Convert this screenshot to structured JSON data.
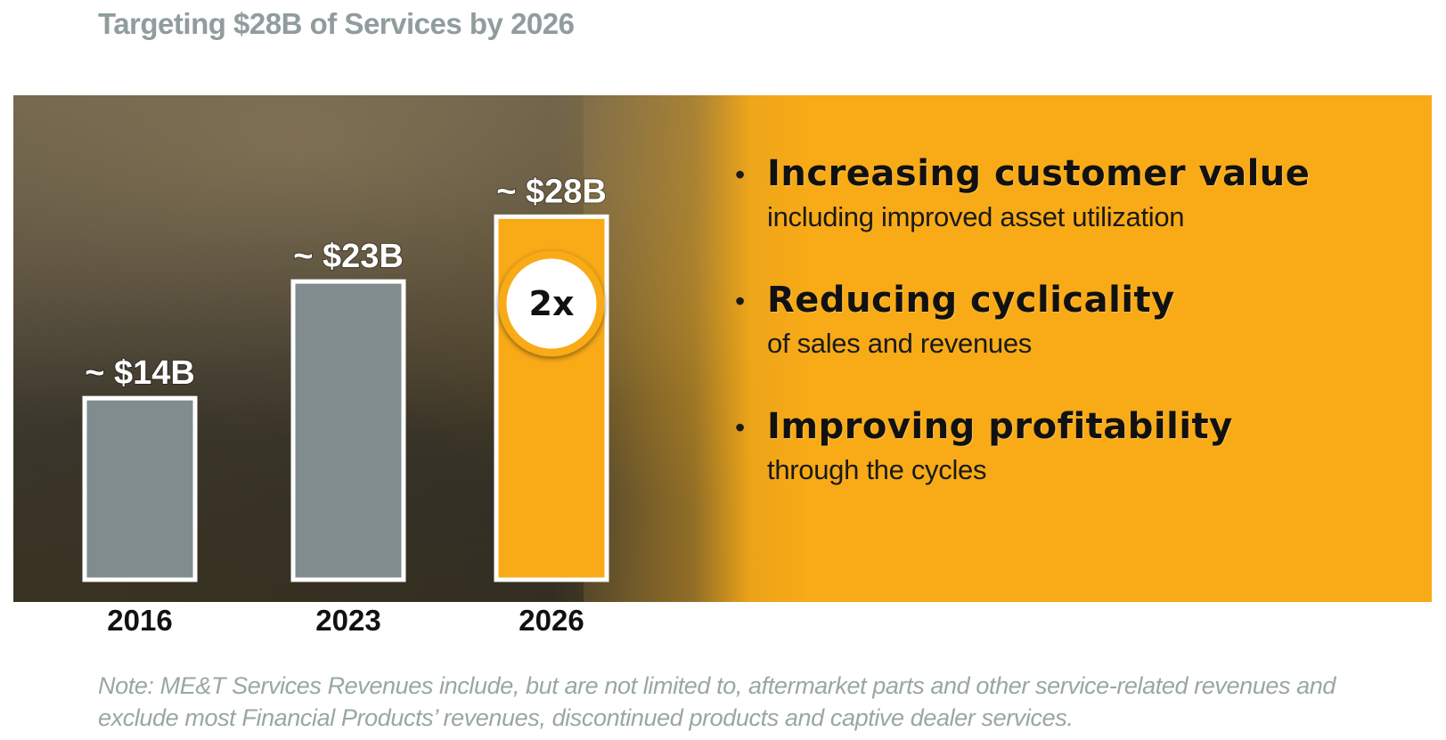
{
  "title": "Targeting $28B of Services by 2026",
  "chart_data": {
    "type": "bar",
    "categories": [
      "2016",
      "2023",
      "2026"
    ],
    "values": [
      14,
      23,
      28
    ],
    "value_labels": [
      "~ $14B",
      "~ $23B",
      "~ $28B"
    ],
    "unit": "$B",
    "title": "Targeting $28B of Services by 2026",
    "xlabel": "",
    "ylabel": "",
    "ylim": [
      0,
      30
    ],
    "grid": false,
    "bar_colors": [
      "#808c8d",
      "#808c8d",
      "#f8aa17"
    ],
    "annotation": {
      "category": "2026",
      "text": "2x"
    }
  },
  "bullets": [
    {
      "heading": "Increasing customer value",
      "sub": "including improved asset utilization"
    },
    {
      "heading": "Reducing cyclicality",
      "sub": "of sales and revenues"
    },
    {
      "heading": "Improving profitability",
      "sub": "through the cycles"
    }
  ],
  "note": "Note: ME&T Services Revenues include, but are not limited to, aftermarket parts and other service-related revenues and exclude most Financial Products’ revenues, discontinued products and captive dealer services.",
  "colors": {
    "accent_yellow": "#f8aa17",
    "bar_gray": "#808c8d",
    "title_gray": "#8f9d9c"
  }
}
